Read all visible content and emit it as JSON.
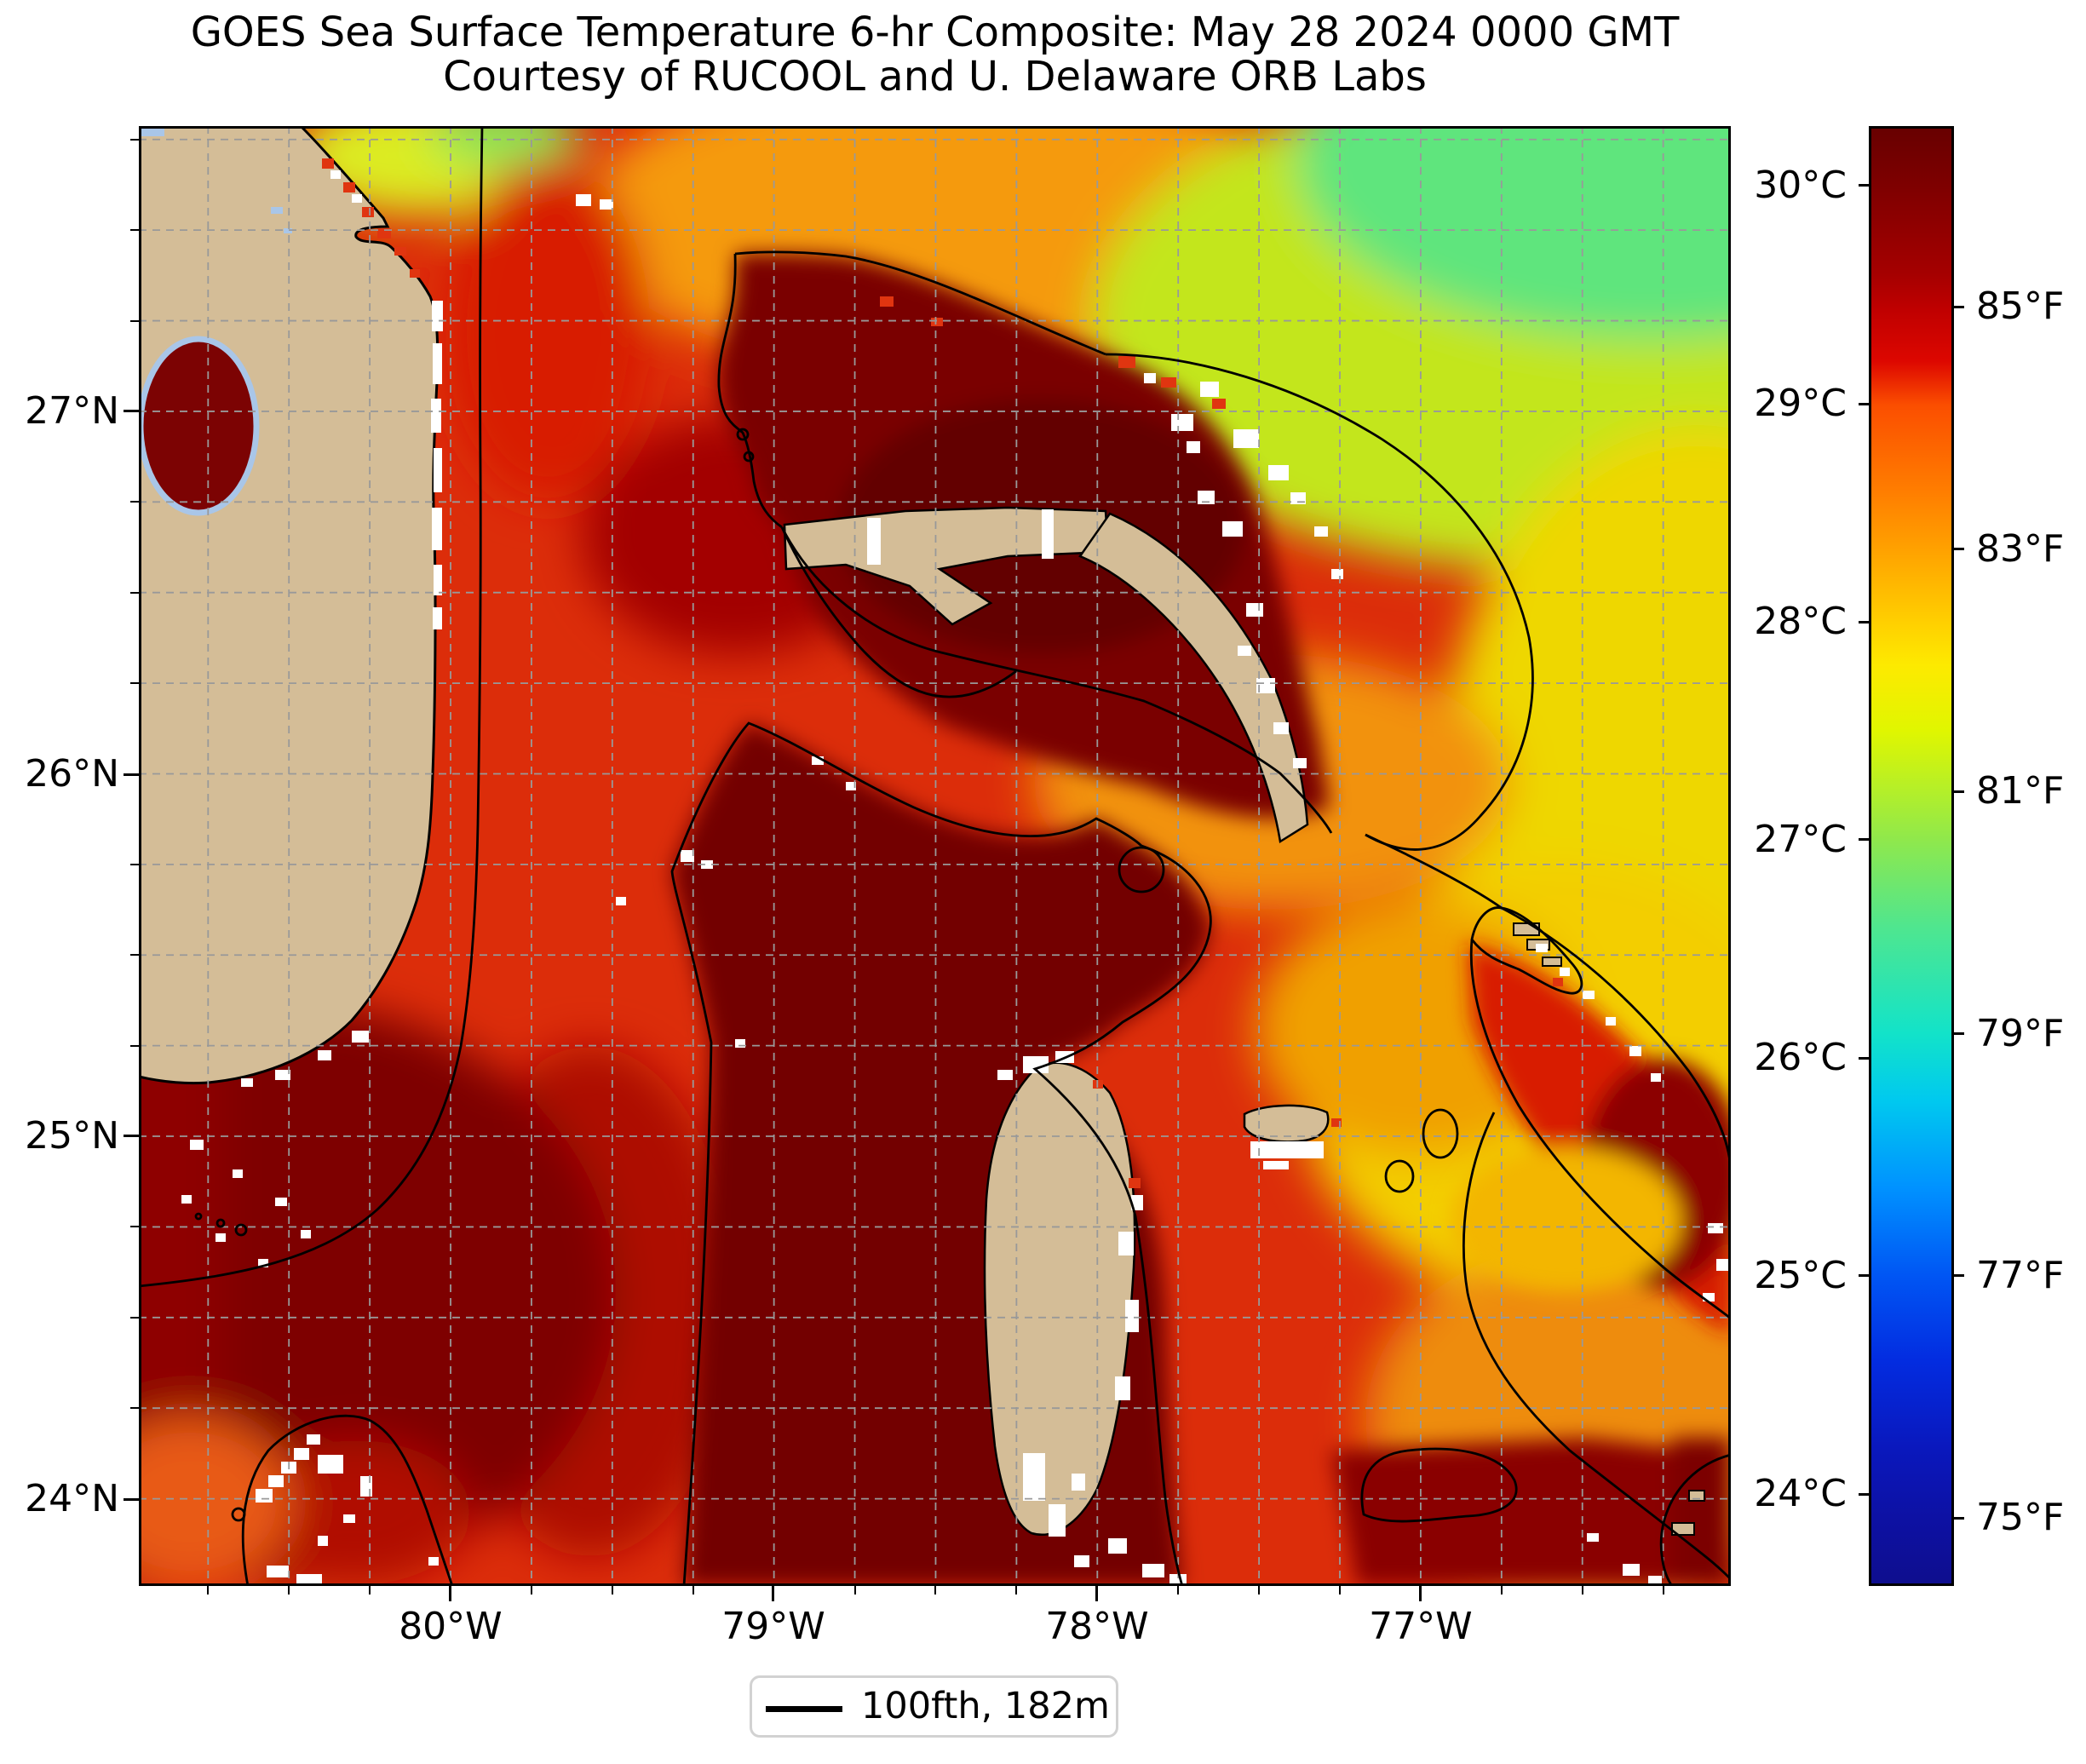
{
  "title": {
    "line1": "GOES Sea Surface Temperature 6-hr Composite: May 28 2024 0000 GMT",
    "line2": "Courtesy of RUCOOL and U. Delaware ORB Labs"
  },
  "map": {
    "y_ticks": [
      {
        "label": "27°N",
        "pos": 0.1954
      },
      {
        "label": "26°N",
        "pos": 0.444
      },
      {
        "label": "25°N",
        "pos": 0.6919
      },
      {
        "label": "24°N",
        "pos": 0.9405
      }
    ],
    "x_ticks": [
      {
        "label": "80°W",
        "pos": 0.1958
      },
      {
        "label": "79°W",
        "pos": 0.3986
      },
      {
        "label": "78°W",
        "pos": 0.6019
      },
      {
        "label": "77°W",
        "pos": 0.8052
      }
    ]
  },
  "colorbar": {
    "celsius_ticks": [
      {
        "label": "30°C",
        "pos": 0.0408
      },
      {
        "label": "29°C",
        "pos": 0.1902
      },
      {
        "label": "28°C",
        "pos": 0.3396
      },
      {
        "label": "27°C",
        "pos": 0.4889
      },
      {
        "label": "26°C",
        "pos": 0.6383
      },
      {
        "label": "25°C",
        "pos": 0.7876
      },
      {
        "label": "24°C",
        "pos": 0.937
      }
    ],
    "fahrenheit_ticks": [
      {
        "label": "85°F",
        "pos": 0.1238
      },
      {
        "label": "83°F",
        "pos": 0.2898
      },
      {
        "label": "81°F",
        "pos": 0.4557
      },
      {
        "label": "79°F",
        "pos": 0.6217
      },
      {
        "label": "77°F",
        "pos": 0.7876
      },
      {
        "label": "75°F",
        "pos": 0.9536
      }
    ],
    "gradient": [
      {
        "frac": 0.0,
        "color": "#680000"
      },
      {
        "frac": 0.041,
        "color": "#7f0000"
      },
      {
        "frac": 0.1,
        "color": "#a50000"
      },
      {
        "frac": 0.124,
        "color": "#bf0000"
      },
      {
        "frac": 0.16,
        "color": "#dd0700"
      },
      {
        "frac": 0.19,
        "color": "#fb4e00"
      },
      {
        "frac": 0.25,
        "color": "#ff7e00"
      },
      {
        "frac": 0.29,
        "color": "#ffa200"
      },
      {
        "frac": 0.34,
        "color": "#ffd000"
      },
      {
        "frac": 0.369,
        "color": "#fdea00"
      },
      {
        "frac": 0.414,
        "color": "#e0f600"
      },
      {
        "frac": 0.456,
        "color": "#b3ef2a"
      },
      {
        "frac": 0.489,
        "color": "#8fe84c"
      },
      {
        "frac": 0.549,
        "color": "#4fe68f"
      },
      {
        "frac": 0.622,
        "color": "#12e3c9"
      },
      {
        "frac": 0.668,
        "color": "#00c9ef"
      },
      {
        "frac": 0.728,
        "color": "#0092ff"
      },
      {
        "frac": 0.788,
        "color": "#0056f4"
      },
      {
        "frac": 0.847,
        "color": "#032ce0"
      },
      {
        "frac": 0.907,
        "color": "#0a18bd"
      },
      {
        "frac": 0.954,
        "color": "#0d11a4"
      },
      {
        "frac": 1.0,
        "color": "#0e0e8e"
      }
    ]
  },
  "legend": {
    "label": "100fth, 182m"
  },
  "colors": {
    "land": "#d4bd97",
    "contour": "#000000",
    "grid": "#999999",
    "cloud_nodata": "#ffffff",
    "lake_rim_blue": "#a9c6e8",
    "ocean_base_red": "#dc2d0a",
    "bank_maroon": "#730101",
    "atlantic_green": "#5fe57d",
    "atlantic_yellow": "#eed702"
  }
}
